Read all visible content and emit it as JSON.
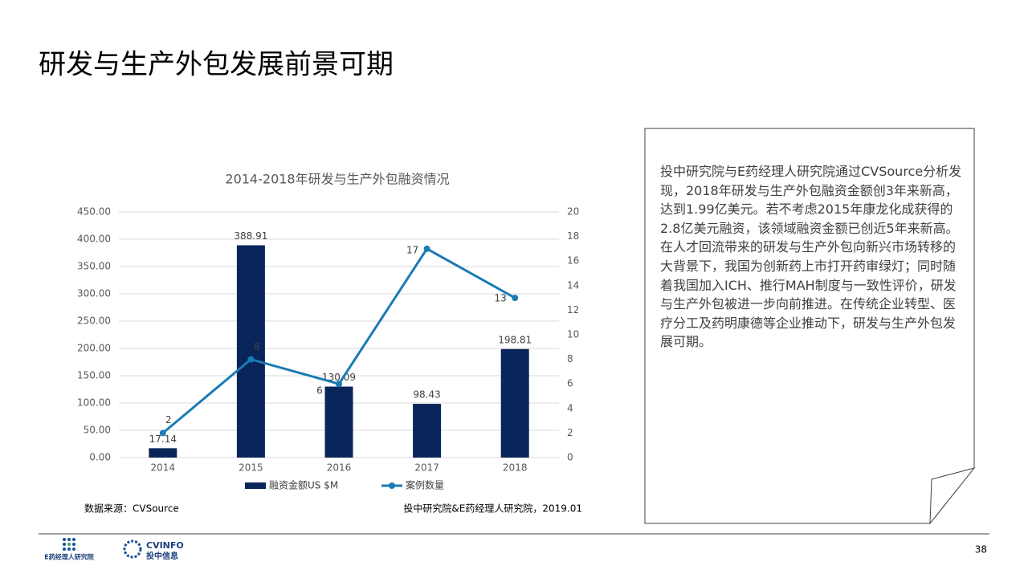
{
  "header": {
    "title": "研发与生产外包发展前景可期"
  },
  "chart_data": {
    "type": "bar",
    "title": "2014-2018年研发与生产外包融资情况",
    "categories": [
      "2014",
      "2015",
      "2016",
      "2017",
      "2018"
    ],
    "series": [
      {
        "name": "融资金额US $M",
        "color": "#0a2559",
        "values": [
          17.14,
          388.91,
          130.09,
          98.43,
          198.81
        ]
      },
      {
        "name": "案例数量",
        "color": "#1b7bb5",
        "type": "line",
        "axis": "y2",
        "values": [
          2,
          8,
          6,
          17,
          13
        ]
      }
    ],
    "ylim": [
      0,
      450
    ],
    "yticks": [
      {
        "value": 0,
        "label": "0.00"
      },
      {
        "value": 50,
        "label": "50.00"
      },
      {
        "value": 100,
        "label": "100.00"
      },
      {
        "value": 150,
        "label": "150.00"
      },
      {
        "value": 200,
        "label": "200.00"
      },
      {
        "value": 250,
        "label": "250.00"
      },
      {
        "value": 300,
        "label": "300.00"
      },
      {
        "value": 350,
        "label": "350.00"
      },
      {
        "value": 400,
        "label": "400.00"
      },
      {
        "value": 450,
        "label": "450.00"
      }
    ],
    "y2lim": [
      0,
      20
    ],
    "y2ticks": [
      0,
      2,
      4,
      6,
      8,
      10,
      12,
      14,
      16,
      18,
      20
    ],
    "grid": true,
    "legend": "bottom"
  },
  "source": {
    "left": "数据来源：CVSource",
    "right": "投中研究院&E药经理人研究院，2019.01"
  },
  "note": "投中研究院与E药经理人研究院通过CVSource分析发现，2018年研发与生产外包融资金额创3年来新高，达到1.99亿美元。若不考虑2015年康龙化成获得的2.8亿美元融资，该领域融资金额已创近5年来新高。在人才回流带来的研发与生产外包向新兴市场转移的大背景下，我国为创新药上市打开药审绿灯；同时随着我国加入ICH、推行MAH制度与一致性评价，研发与生产外包被进一步向前推进。在传统企业转型、医疗分工及药明康德等企业推动下，研发与生产外包发展可期。",
  "footer": {
    "logo1": "E药经理人研究院",
    "logo2": "CVINFO",
    "logo2_sub": "投中信息",
    "page": "38"
  }
}
